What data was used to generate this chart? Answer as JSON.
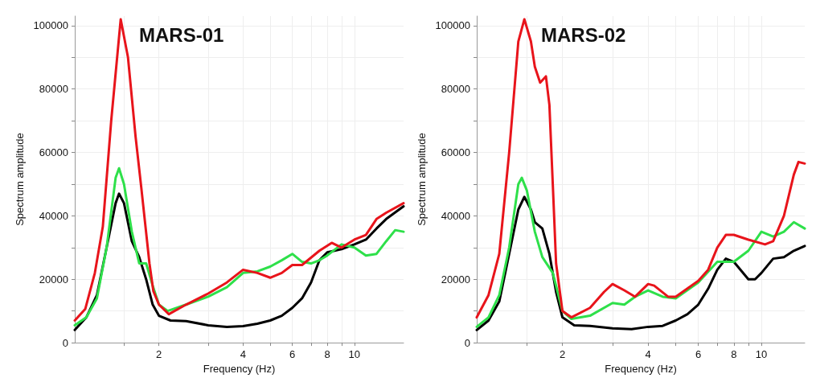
{
  "chart_data": [
    {
      "type": "line",
      "title": "MARS-01",
      "xlabel": "Frequency (Hz)",
      "ylabel": "Spectrum amplitude",
      "log": "x",
      "grid": true,
      "marker": "none",
      "line_style": "solid",
      "xlim": [
        1,
        15
      ],
      "ylim": [
        0,
        103000
      ],
      "xticks": [
        {
          "value": 1.5,
          "label": null
        },
        2,
        {
          "value": 3,
          "label": null
        },
        4,
        {
          "value": 5,
          "label": null
        },
        6,
        {
          "value": 7,
          "label": null
        },
        8,
        {
          "value": 9,
          "label": null
        },
        10
      ],
      "yticks": [
        0,
        {
          "value": 10000,
          "label": null
        },
        20000,
        {
          "value": 30000,
          "label": null
        },
        40000,
        {
          "value": 50000,
          "label": null
        },
        60000,
        {
          "value": 70000,
          "label": null
        },
        80000,
        {
          "value": 90000,
          "label": null
        },
        100000
      ],
      "series": [
        {
          "color": "#000000",
          "x": [
            1,
            1.1,
            1.2,
            1.3,
            1.4,
            1.44,
            1.5,
            1.6,
            1.7,
            1.8,
            1.9,
            2,
            2.2,
            2.5,
            3,
            3.5,
            4,
            4.5,
            5,
            5.5,
            6,
            6.5,
            7,
            7.5,
            8,
            9,
            10,
            11,
            12,
            13,
            15
          ],
          "values": [
            4000,
            8000,
            15000,
            30000,
            44000,
            47000,
            44000,
            32000,
            27000,
            20000,
            12000,
            8500,
            7000,
            6800,
            5500,
            5000,
            5200,
            6000,
            7000,
            8500,
            11000,
            14000,
            19000,
            26000,
            28500,
            29500,
            31000,
            32500,
            36000,
            39000,
            43000
          ]
        },
        {
          "color": "#2ee04a",
          "x": [
            1,
            1.1,
            1.2,
            1.3,
            1.4,
            1.44,
            1.5,
            1.6,
            1.7,
            1.8,
            1.9,
            2,
            2.15,
            2.5,
            3,
            3.5,
            4,
            4.5,
            5,
            5.5,
            6,
            6.5,
            7,
            7.5,
            8,
            9,
            10,
            11,
            12,
            13,
            14,
            15
          ],
          "values": [
            5500,
            8000,
            14000,
            30000,
            52000,
            55000,
            50000,
            35000,
            25000,
            25000,
            18000,
            12000,
            10000,
            12000,
            14500,
            17500,
            22000,
            22500,
            24000,
            26000,
            28000,
            25500,
            25000,
            26000,
            27500,
            31000,
            30000,
            27500,
            28000,
            32000,
            35500,
            35000
          ]
        },
        {
          "color": "#e8141b",
          "x": [
            1,
            1.09,
            1.18,
            1.26,
            1.35,
            1.46,
            1.55,
            1.65,
            1.73,
            1.85,
            1.91,
            2,
            2.17,
            2.5,
            3,
            3.5,
            4,
            4.5,
            5,
            5.5,
            6,
            6.5,
            7.5,
            8.3,
            9,
            10,
            11,
            12,
            13,
            15
          ],
          "values": [
            7000,
            10600,
            22000,
            36600,
            70000,
            102000,
            90000,
            65000,
            48800,
            25000,
            16300,
            12000,
            9000,
            12000,
            15500,
            19000,
            23000,
            22000,
            20500,
            22000,
            24500,
            24500,
            29000,
            31500,
            30000,
            32500,
            34000,
            39000,
            41000,
            44000
          ]
        }
      ]
    },
    {
      "type": "line",
      "title": "MARS-02",
      "xlabel": "Frequency (Hz)",
      "ylabel": "Spectrum amplitude",
      "log": "x",
      "grid": true,
      "marker": "none",
      "line_style": "solid",
      "xlim": [
        1,
        14.2
      ],
      "ylim": [
        0,
        103000
      ],
      "xticks": [
        {
          "value": 1.5,
          "label": null
        },
        2,
        {
          "value": 3,
          "label": null
        },
        4,
        {
          "value": 5,
          "label": null
        },
        6,
        {
          "value": 7,
          "label": null
        },
        8,
        {
          "value": 9,
          "label": null
        },
        10
      ],
      "yticks": [
        0,
        {
          "value": 10000,
          "label": null
        },
        20000,
        {
          "value": 30000,
          "label": null
        },
        40000,
        {
          "value": 50000,
          "label": null
        },
        60000,
        {
          "value": 70000,
          "label": null
        },
        80000,
        {
          "value": 90000,
          "label": null
        },
        100000
      ],
      "series": [
        {
          "color": "#000000",
          "x": [
            1,
            1.1,
            1.2,
            1.3,
            1.4,
            1.47,
            1.55,
            1.6,
            1.7,
            1.8,
            1.9,
            2,
            2.2,
            2.5,
            3,
            3.5,
            4,
            4.5,
            5,
            5.5,
            6,
            6.5,
            7,
            7.5,
            8,
            9,
            9.5,
            10,
            11,
            12,
            13,
            14.2
          ],
          "values": [
            4000,
            7000,
            13000,
            28000,
            42000,
            46000,
            42000,
            38000,
            36000,
            28000,
            16000,
            8000,
            5500,
            5300,
            4500,
            4300,
            5000,
            5300,
            7000,
            9000,
            12000,
            17000,
            23000,
            26500,
            25500,
            20000,
            20000,
            22000,
            26500,
            27000,
            29000,
            30500
          ]
        },
        {
          "color": "#2ee04a",
          "x": [
            1,
            1.1,
            1.2,
            1.3,
            1.4,
            1.44,
            1.5,
            1.6,
            1.7,
            1.85,
            2,
            2.15,
            2.5,
            3,
            3.3,
            3.6,
            4,
            4.5,
            5,
            6,
            7,
            8,
            9,
            10,
            11,
            12,
            13,
            14.2
          ],
          "values": [
            5000,
            8000,
            15000,
            30000,
            50000,
            52000,
            48000,
            35000,
            27000,
            22000,
            10000,
            7500,
            8500,
            12500,
            12000,
            14500,
            16500,
            14500,
            14000,
            19000,
            25500,
            25500,
            29000,
            35000,
            33500,
            35000,
            38000,
            36000
          ]
        },
        {
          "color": "#e8141b",
          "x": [
            1,
            1.1,
            1.2,
            1.3,
            1.4,
            1.47,
            1.55,
            1.6,
            1.67,
            1.75,
            1.8,
            1.85,
            1.9,
            2,
            2.15,
            2.5,
            2.8,
            3,
            3.3,
            3.6,
            4,
            4.2,
            4.7,
            5,
            6,
            6.5,
            7,
            7.5,
            8,
            9,
            10.3,
            11,
            12,
            13,
            13.5,
            14.2
          ],
          "values": [
            8000,
            15000,
            28000,
            60000,
            95000,
            102000,
            95000,
            87000,
            82000,
            84000,
            75000,
            50000,
            25000,
            10000,
            8000,
            11000,
            16000,
            18500,
            16500,
            14500,
            18500,
            18000,
            14500,
            14500,
            19500,
            23000,
            30000,
            34000,
            34000,
            32500,
            31000,
            32000,
            40000,
            53000,
            57000,
            56500
          ]
        }
      ]
    }
  ]
}
